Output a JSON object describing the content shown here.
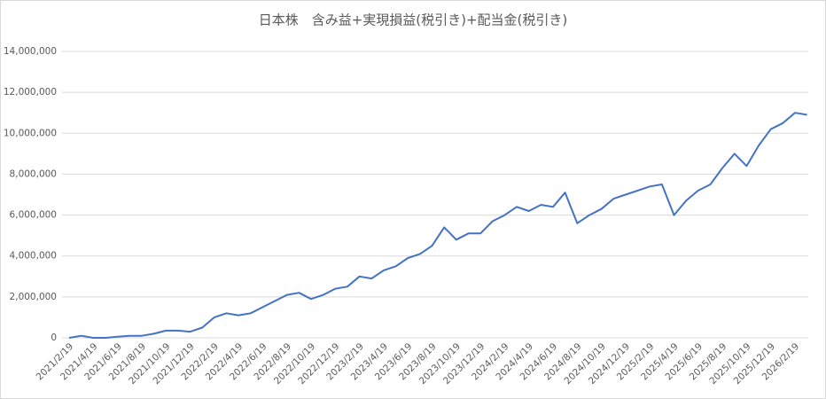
{
  "chart_data": {
    "type": "line",
    "title": "日本株　含み益+実現損益(税引き)+配当金(税引き)",
    "categories": [
      "2021/2/19",
      null,
      "2021/4/19",
      null,
      "2021/6/19",
      null,
      "2021/8/19",
      null,
      "2021/10/19",
      null,
      "2021/12/19",
      null,
      "2022/2/19",
      null,
      "2022/4/19",
      null,
      "2022/6/19",
      null,
      "2022/8/19",
      null,
      "2022/10/19",
      null,
      "2022/12/19",
      null,
      "2023/2/19",
      null,
      "2023/4/19",
      null,
      "2023/6/19",
      null,
      "2023/8/19",
      null,
      "2023/10/19",
      null,
      "2023/12/19",
      null,
      "2024/2/19",
      null,
      "2024/4/19",
      null,
      "2024/6/19",
      null,
      "2024/8/19",
      null,
      "2024/10/19",
      null,
      "2024/12/19",
      null,
      "2025/2/19",
      null,
      "2025/4/19",
      null,
      "2025/6/19",
      null,
      "2025/8/19",
      null,
      "2025/10/19",
      null,
      "2025/12/19",
      null,
      "2026/2/19",
      null
    ],
    "series": [
      {
        "name": "含み益+実現損益(税引き)+配当金(税引き)",
        "color": "#4472c4",
        "values": [
          0,
          100000,
          0,
          0,
          50000,
          100000,
          100000,
          200000,
          350000,
          350000,
          300000,
          500000,
          1000000,
          1200000,
          1100000,
          1200000,
          1500000,
          1800000,
          2100000,
          2200000,
          1900000,
          2100000,
          2400000,
          2500000,
          3000000,
          2900000,
          3300000,
          3500000,
          3900000,
          4100000,
          4500000,
          5400000,
          4800000,
          5100000,
          5100000,
          5700000,
          6000000,
          6400000,
          6200000,
          6500000,
          6400000,
          7100000,
          5600000,
          6000000,
          6300000,
          6800000,
          7000000,
          7200000,
          7400000,
          7500000,
          6000000,
          6700000,
          7200000,
          7500000,
          8300000,
          9000000,
          8400000,
          9400000,
          10200000,
          10500000,
          11000000,
          10900000
        ]
      }
    ],
    "ylim": [
      0,
      14000000
    ],
    "yticks": [
      0,
      {
        "value": 2000000,
        "label": "2,000,000"
      },
      {
        "value": 4000000,
        "label": "4,000,000"
      },
      {
        "value": 6000000,
        "label": "6,000,000"
      },
      {
        "value": 8000000,
        "label": "8,000,000"
      },
      {
        "value": 10000000,
        "label": "10,000,000"
      },
      {
        "value": 12000000,
        "label": "12,000,000"
      },
      {
        "value": 14000000,
        "label": "14,000,000"
      }
    ],
    "grid": true
  }
}
